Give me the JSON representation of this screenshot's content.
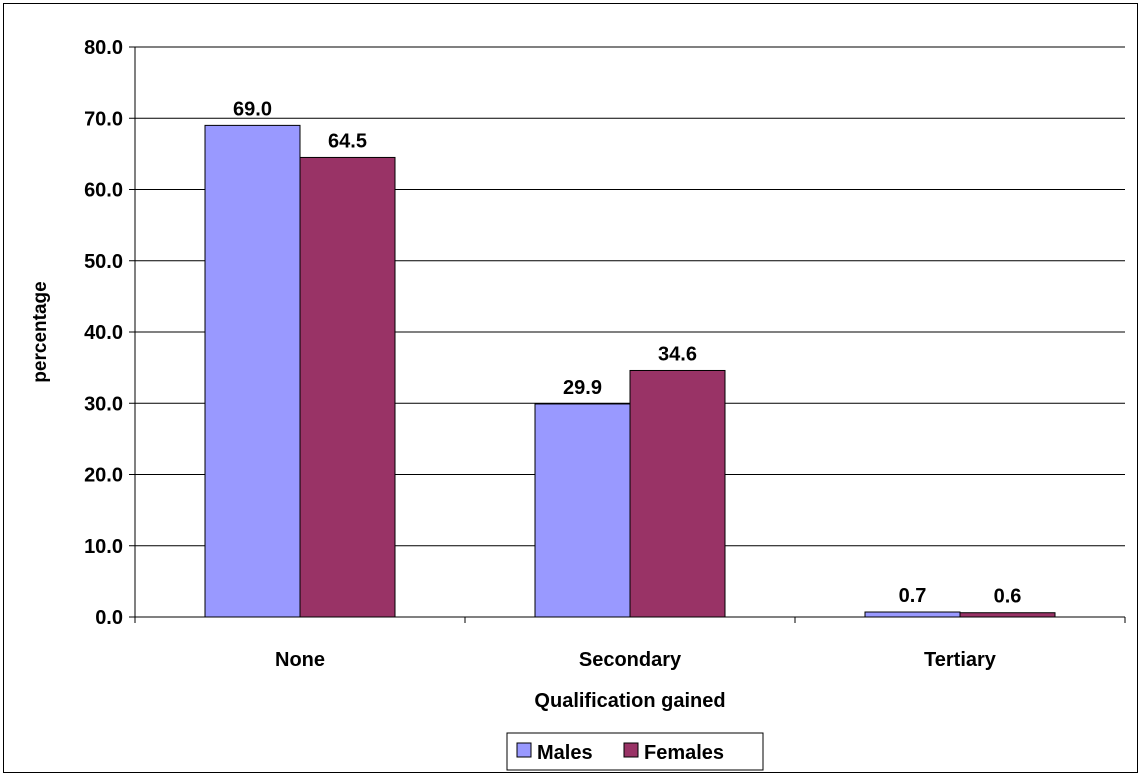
{
  "chart_data": {
    "type": "bar",
    "title": "",
    "xlabel": "Qualification gained",
    "ylabel": "percentage",
    "categories": [
      "None",
      "Secondary",
      "Tertiary"
    ],
    "ylim": [
      0,
      80
    ],
    "ytick_values": [
      0,
      10,
      20,
      30,
      40,
      50,
      60,
      70,
      80
    ],
    "ytick_labels": [
      "0.0",
      "10.0",
      "20.0",
      "30.0",
      "40.0",
      "50.0",
      "60.0",
      "70.0",
      "80.0"
    ],
    "grid": true,
    "legend_position": "bottom",
    "series": [
      {
        "name": "Males",
        "color": "#9999FF",
        "values": [
          69.0,
          29.9,
          0.7
        ],
        "labels": [
          "69.0",
          "29.9",
          "0.7"
        ]
      },
      {
        "name": "Females",
        "color": "#993366",
        "values": [
          64.5,
          34.6,
          0.6
        ],
        "labels": [
          "64.5",
          "34.6",
          "0.6"
        ]
      }
    ]
  }
}
